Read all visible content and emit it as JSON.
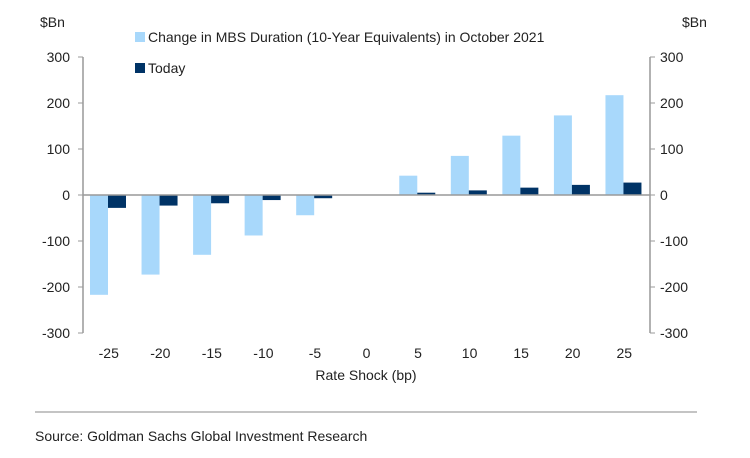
{
  "chart_data": {
    "type": "bar",
    "categories": [
      "-25",
      "-20",
      "-15",
      "-10",
      "-5",
      "0",
      "5",
      "10",
      "15",
      "20",
      "25"
    ],
    "series": [
      {
        "name": "Change in MBS Duration (10-Year Equivalents) in October 2021",
        "color": "#a8d8fb",
        "values": [
          -217,
          -173,
          -130,
          -88,
          -44,
          0,
          42,
          85,
          129,
          173,
          217
        ]
      },
      {
        "name": "Today",
        "color": "#003366",
        "values": [
          -28,
          -23,
          -18,
          -11,
          -7,
          0,
          5,
          10,
          16,
          22,
          27
        ]
      }
    ],
    "xlabel": "Rate Shock (bp)",
    "ylabel_left": "$Bn",
    "ylabel_right": "$Bn",
    "ylim": [
      -300,
      300
    ],
    "yticks": [
      300,
      200,
      100,
      0,
      -100,
      -200,
      -300
    ],
    "grid": false,
    "legend_placement": "top"
  },
  "source": "Source: Goldman Sachs Global Investment Research"
}
